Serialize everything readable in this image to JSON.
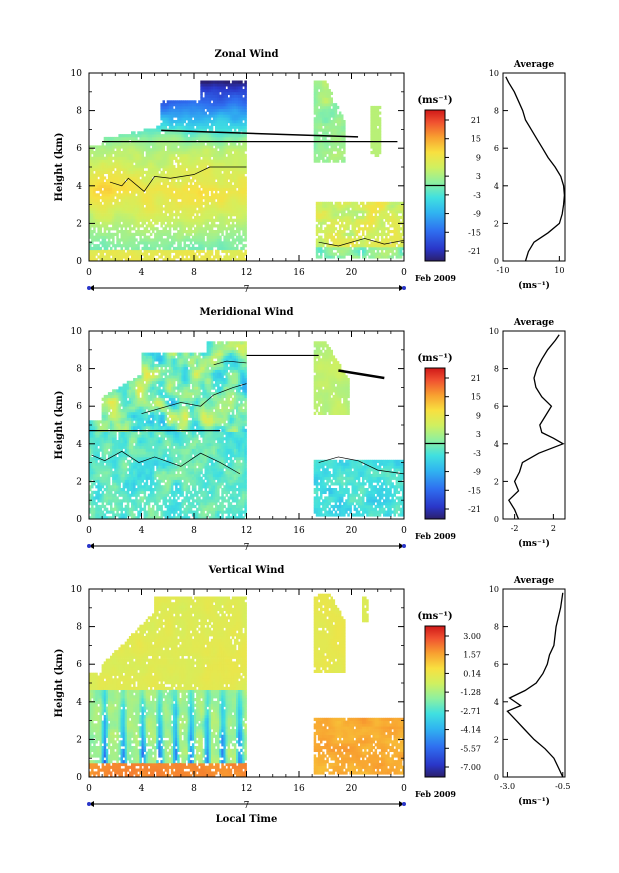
{
  "chart_data": [
    {
      "type": "heatmap",
      "title": "Zonal Wind",
      "ylabel": "Height (km)",
      "xlabel": "",
      "x_ticks": [
        "0",
        "4",
        "8",
        "12",
        "16",
        "20",
        "0"
      ],
      "y_ticks": [
        "0",
        "2",
        "4",
        "6",
        "8",
        "10"
      ],
      "xlim": [
        0,
        24
      ],
      "ylim": [
        0,
        10
      ],
      "date_marker": "7",
      "date_label": "Feb 2009",
      "colorbar": {
        "unit": "(ms⁻¹)",
        "ticks": [
          "21",
          "15",
          "9",
          "3",
          "-3",
          "-9",
          "-15",
          "-21"
        ],
        "range": [
          -24,
          24
        ],
        "contour_at": 0
      },
      "data_gaps": [
        [
          12.1,
          17.3
        ]
      ],
      "average": {
        "title": "Average",
        "xlabel": "(ms⁻¹)",
        "x_ticks": [
          "-10",
          "10"
        ],
        "xlim": [
          -10,
          12
        ],
        "profile": [
          [
            0,
            -2
          ],
          [
            0.5,
            -1
          ],
          [
            1,
            1
          ],
          [
            1.5,
            6
          ],
          [
            2,
            10
          ],
          [
            2.5,
            11
          ],
          [
            3,
            11.5
          ],
          [
            3.5,
            11.8
          ],
          [
            4,
            11.5
          ],
          [
            4.5,
            10.5
          ],
          [
            5,
            8.5
          ],
          [
            5.5,
            6
          ],
          [
            6,
            4
          ],
          [
            6.5,
            2
          ],
          [
            7,
            0
          ],
          [
            7.5,
            -2
          ],
          [
            8,
            -3
          ],
          [
            8.5,
            -4.5
          ],
          [
            9,
            -6
          ],
          [
            9.5,
            -8
          ],
          [
            9.8,
            -9
          ]
        ]
      }
    },
    {
      "type": "heatmap",
      "title": "Meridional Wind",
      "ylabel": "Height (km)",
      "xlabel": "",
      "x_ticks": [
        "0",
        "4",
        "8",
        "12",
        "16",
        "20",
        "0"
      ],
      "y_ticks": [
        "0",
        "2",
        "4",
        "6",
        "8",
        "10"
      ],
      "xlim": [
        0,
        24
      ],
      "ylim": [
        0,
        10
      ],
      "date_marker": "7",
      "date_label": "Feb 2009",
      "colorbar": {
        "unit": "(ms⁻¹)",
        "ticks": [
          "21",
          "15",
          "9",
          "3",
          "-3",
          "-9",
          "-15",
          "-21"
        ],
        "range": [
          -24,
          24
        ],
        "contour_at": 0
      },
      "data_gaps": [
        [
          12.1,
          17.3
        ]
      ],
      "average": {
        "title": "Average",
        "xlabel": "(ms⁻¹)",
        "x_ticks": [
          "-2",
          "2"
        ],
        "xlim": [
          -3.2,
          3.2
        ],
        "profile": [
          [
            0,
            -1.6
          ],
          [
            0.5,
            -2
          ],
          [
            1,
            -2.6
          ],
          [
            1.5,
            -1.6
          ],
          [
            2,
            -2
          ],
          [
            2.5,
            -1.5
          ],
          [
            3,
            -1.2
          ],
          [
            3.5,
            0.5
          ],
          [
            4,
            3
          ],
          [
            4.3,
            2
          ],
          [
            4.6,
            0.8
          ],
          [
            5,
            0.6
          ],
          [
            5.5,
            1.2
          ],
          [
            6,
            1.8
          ],
          [
            6.5,
            0.8
          ],
          [
            7,
            0.2
          ],
          [
            7.5,
            0
          ],
          [
            8,
            0.3
          ],
          [
            8.5,
            0.8
          ],
          [
            9,
            1.4
          ],
          [
            9.5,
            2.2
          ],
          [
            9.8,
            2.6
          ]
        ]
      }
    },
    {
      "type": "heatmap",
      "title": "Vertical Wind",
      "ylabel": "Height (km)",
      "xlabel": "Local Time",
      "x_ticks": [
        "0",
        "4",
        "8",
        "12",
        "16",
        "20",
        "0"
      ],
      "y_ticks": [
        "0",
        "2",
        "4",
        "6",
        "8",
        "10"
      ],
      "xlim": [
        0,
        24
      ],
      "ylim": [
        0,
        10
      ],
      "date_marker": "7",
      "date_label": "Feb 2009",
      "colorbar": {
        "unit": "(ms⁻¹)",
        "ticks": [
          "3.00",
          "1.57",
          "0.14",
          "-1.28",
          "-2.71",
          "-4.14",
          "-5.57",
          "-7.00"
        ],
        "range": [
          -7.7,
          3.7
        ]
      },
      "data_gaps": [
        [
          12.1,
          17.3
        ]
      ],
      "average": {
        "title": "Average",
        "xlabel": "(ms⁻¹)",
        "x_ticks": [
          "-3.0",
          "-0.5"
        ],
        "xlim": [
          -3.2,
          -0.4
        ],
        "profile": [
          [
            0,
            -0.5
          ],
          [
            0.5,
            -0.7
          ],
          [
            1,
            -0.9
          ],
          [
            1.5,
            -1.3
          ],
          [
            2,
            -1.8
          ],
          [
            2.5,
            -2.2
          ],
          [
            3,
            -2.6
          ],
          [
            3.5,
            -3.0
          ],
          [
            3.8,
            -2.4
          ],
          [
            4.2,
            -2.9
          ],
          [
            4.6,
            -2.2
          ],
          [
            5,
            -1.7
          ],
          [
            5.5,
            -1.4
          ],
          [
            6,
            -1.2
          ],
          [
            6.5,
            -1.1
          ],
          [
            7,
            -0.9
          ],
          [
            8,
            -0.8
          ],
          [
            9,
            -0.6
          ],
          [
            9.8,
            -0.5
          ]
        ]
      }
    }
  ]
}
